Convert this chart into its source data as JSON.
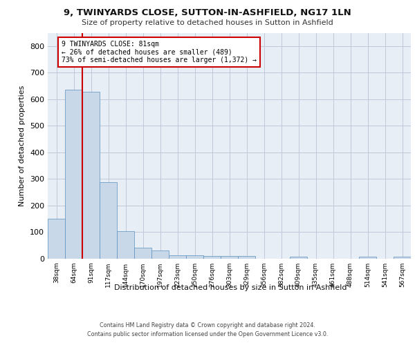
{
  "title": "9, TWINYARDS CLOSE, SUTTON-IN-ASHFIELD, NG17 1LN",
  "subtitle": "Size of property relative to detached houses in Sutton in Ashfield",
  "xlabel": "Distribution of detached houses by size in Sutton in Ashfield",
  "ylabel": "Number of detached properties",
  "categories": [
    "38sqm",
    "64sqm",
    "91sqm",
    "117sqm",
    "144sqm",
    "170sqm",
    "197sqm",
    "223sqm",
    "250sqm",
    "276sqm",
    "303sqm",
    "329sqm",
    "356sqm",
    "382sqm",
    "409sqm",
    "435sqm",
    "461sqm",
    "488sqm",
    "514sqm",
    "541sqm",
    "567sqm"
  ],
  "values": [
    150,
    635,
    627,
    287,
    103,
    42,
    30,
    12,
    13,
    11,
    10,
    10,
    0,
    0,
    8,
    0,
    0,
    0,
    8,
    0,
    8
  ],
  "bar_color": "#c8d8e8",
  "bar_edge_color": "#5a8fc0",
  "red_line_x": 1.5,
  "annotation_text": "9 TWINYARDS CLOSE: 81sqm\n← 26% of detached houses are smaller (489)\n73% of semi-detached houses are larger (1,372) →",
  "annotation_box_color": "#ffffff",
  "annotation_box_edge": "#cc0000",
  "red_line_color": "#cc0000",
  "grid_color": "#c0c8d8",
  "background_color": "#e8eef5",
  "ylim": [
    0,
    850
  ],
  "yticks": [
    0,
    100,
    200,
    300,
    400,
    500,
    600,
    700,
    800
  ],
  "footer_line1": "Contains HM Land Registry data © Crown copyright and database right 2024.",
  "footer_line2": "Contains public sector information licensed under the Open Government Licence v3.0."
}
